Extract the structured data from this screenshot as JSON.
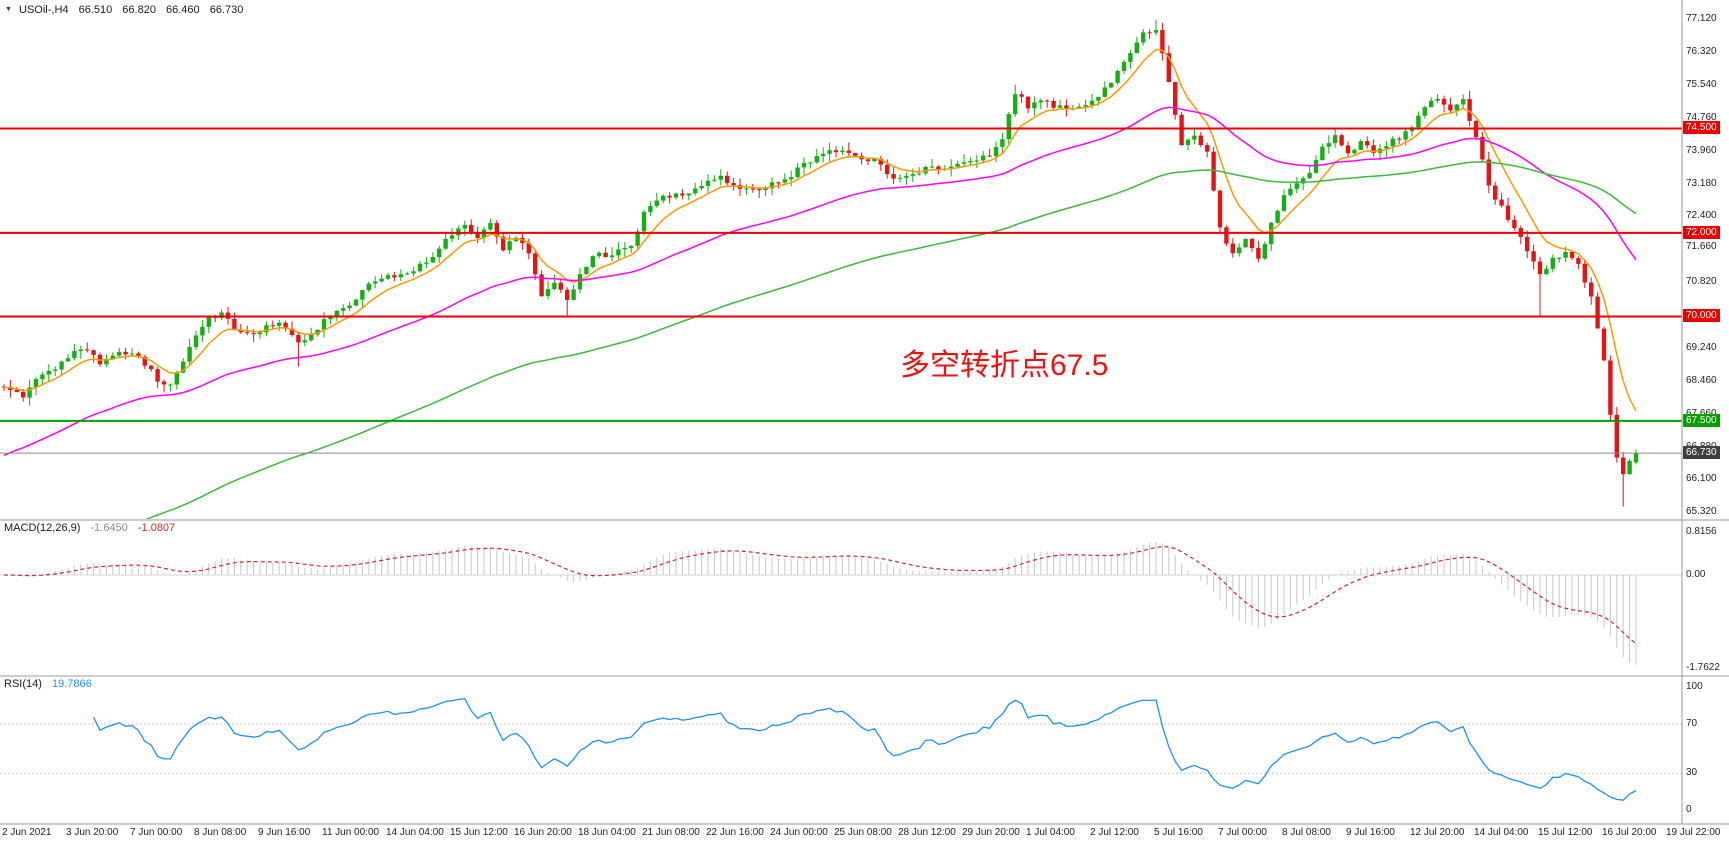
{
  "title": {
    "expander": "▼",
    "symbol_period": "USOil-,H4",
    "open": "66.510",
    "high": "66.820",
    "low": "66.460",
    "close": "66.730"
  },
  "indicators": {
    "macd": {
      "label": "MACD(12,26,9)",
      "main_value": "-1.6450",
      "signal_value": "-1.0807",
      "main_color": "#8a8a8a",
      "signal_color": "#d02828"
    },
    "rsi": {
      "label": "RSI(14)",
      "value": "19.7866",
      "value_color": "#1e90ff"
    }
  },
  "colors": {
    "background": "#ffffff",
    "panel_border": "#9a9a9a",
    "axis_text": "#1f1f1f"
  },
  "chart_data": {
    "type": "candlestick",
    "symbol": "USOil-",
    "timeframe": "H4",
    "current_bar": {
      "open": 66.51,
      "high": 66.82,
      "low": 66.46,
      "close": 66.73
    },
    "annotation": {
      "text": "多空转折点67.5",
      "color": "#ee1111"
    },
    "y_axis_ticks": [
      "77.120",
      "76.320",
      "75.540",
      "74.760",
      "73.960",
      "73.180",
      "72.400",
      "71.660",
      "70.820",
      "69.240",
      "68.460",
      "67.660",
      "66.880",
      "66.100",
      "65.320"
    ],
    "x_axis_labels": [
      "2 Jun 2021",
      "3 Jun 20:00",
      "7 Jun 00:00",
      "8 Jun 08:00",
      "9 Jun 16:00",
      "11 Jun 00:00",
      "14 Jun 04:00",
      "15 Jun 12:00",
      "16 Jun 20:00",
      "18 Jun 04:00",
      "21 Jun 08:00",
      "22 Jun 16:00",
      "24 Jun 00:00",
      "25 Jun 08:00",
      "28 Jun 12:00",
      "29 Jun 20:00",
      "1 Jul 04:00",
      "2 Jul 12:00",
      "5 Jul 16:00",
      "7 Jul 00:00",
      "8 Jul 08:00",
      "9 Jul 16:00",
      "12 Jul 20:00",
      "14 Jul 04:00",
      "15 Jul 12:00",
      "16 Jul 20:00",
      "19 Jul 22:00"
    ],
    "levels": [
      {
        "value": 74.5,
        "label": "74.500",
        "color": "#ee0000",
        "badge": "#ee0000",
        "width": 2
      },
      {
        "value": 72.0,
        "label": "72.000",
        "color": "#ee0000",
        "badge": "#ee0000",
        "width": 2
      },
      {
        "value": 70.0,
        "label": "70.000",
        "color": "#ee0000",
        "badge": "#ee0000",
        "width": 2
      },
      {
        "value": 67.5,
        "label": "67.500",
        "color": "#00a000",
        "badge": "#00a000",
        "width": 2
      },
      {
        "value": 66.73,
        "label": "66.730",
        "color": "#888888",
        "badge": "#404040",
        "width": 1
      }
    ],
    "candles": {
      "count": 256,
      "spacing": 6.4,
      "noise": 0.14,
      "wick": 0.2,
      "seed": 987654,
      "up_color": "#12b012",
      "down_color": "#e41414",
      "close_waypoints": [
        [
          0,
          68.35
        ],
        [
          3,
          68.1
        ],
        [
          6,
          68.6
        ],
        [
          9,
          68.9
        ],
        [
          12,
          69.25
        ],
        [
          15,
          68.9
        ],
        [
          18,
          69.2
        ],
        [
          21,
          69.05
        ],
        [
          24,
          68.5
        ],
        [
          26,
          68.35
        ],
        [
          29,
          69.3
        ],
        [
          32,
          69.95
        ],
        [
          34,
          70.05
        ],
        [
          37,
          69.6
        ],
        [
          40,
          69.65
        ],
        [
          43,
          69.9
        ],
        [
          46,
          69.35
        ],
        [
          48,
          69.6
        ],
        [
          51,
          70.05
        ],
        [
          54,
          70.25
        ],
        [
          57,
          70.75
        ],
        [
          60,
          70.95
        ],
        [
          63,
          71.05
        ],
        [
          66,
          71.3
        ],
        [
          69,
          71.8
        ],
        [
          72,
          72.25
        ],
        [
          74,
          71.85
        ],
        [
          76,
          72.2
        ],
        [
          78,
          71.65
        ],
        [
          80,
          71.95
        ],
        [
          82,
          71.5
        ],
        [
          84,
          70.55
        ],
        [
          86,
          70.85
        ],
        [
          88,
          70.35
        ],
        [
          90,
          71.0
        ],
        [
          92,
          71.45
        ],
        [
          95,
          71.5
        ],
        [
          98,
          71.7
        ],
        [
          100,
          72.5
        ],
        [
          103,
          72.85
        ],
        [
          106,
          72.95
        ],
        [
          109,
          73.1
        ],
        [
          112,
          73.35
        ],
        [
          115,
          73.0
        ],
        [
          118,
          73.05
        ],
        [
          121,
          73.2
        ],
        [
          124,
          73.5
        ],
        [
          127,
          73.85
        ],
        [
          130,
          74.0
        ],
        [
          133,
          73.85
        ],
        [
          136,
          73.7
        ],
        [
          139,
          73.3
        ],
        [
          142,
          73.45
        ],
        [
          145,
          73.55
        ],
        [
          148,
          73.6
        ],
        [
          151,
          73.7
        ],
        [
          154,
          73.9
        ],
        [
          156,
          74.3
        ],
        [
          158,
          75.35
        ],
        [
          160,
          75.05
        ],
        [
          162,
          75.2
        ],
        [
          164,
          75.05
        ],
        [
          166,
          74.95
        ],
        [
          168,
          75.0
        ],
        [
          170,
          75.2
        ],
        [
          172,
          75.45
        ],
        [
          174,
          75.85
        ],
        [
          176,
          76.35
        ],
        [
          178,
          76.75
        ],
        [
          180,
          76.9
        ],
        [
          182,
          75.6
        ],
        [
          184,
          74.05
        ],
        [
          186,
          74.35
        ],
        [
          188,
          73.9
        ],
        [
          190,
          72.1
        ],
        [
          192,
          71.45
        ],
        [
          194,
          71.8
        ],
        [
          196,
          71.35
        ],
        [
          198,
          72.2
        ],
        [
          200,
          72.85
        ],
        [
          202,
          73.25
        ],
        [
          204,
          73.5
        ],
        [
          206,
          74.0
        ],
        [
          208,
          74.35
        ],
        [
          210,
          73.85
        ],
        [
          212,
          74.15
        ],
        [
          214,
          73.95
        ],
        [
          216,
          74.1
        ],
        [
          218,
          74.3
        ],
        [
          220,
          74.55
        ],
        [
          222,
          75.0
        ],
        [
          224,
          75.25
        ],
        [
          226,
          74.9
        ],
        [
          228,
          75.15
        ],
        [
          230,
          74.35
        ],
        [
          232,
          73.1
        ],
        [
          234,
          72.6
        ],
        [
          236,
          72.15
        ],
        [
          238,
          71.6
        ],
        [
          240,
          71.05
        ],
        [
          242,
          71.35
        ],
        [
          244,
          71.5
        ],
        [
          246,
          71.2
        ],
        [
          248,
          70.45
        ],
        [
          250,
          68.9
        ],
        [
          251,
          67.6
        ],
        [
          252,
          66.6
        ],
        [
          253,
          66.25
        ],
        [
          254,
          66.55
        ],
        [
          255,
          66.73
        ]
      ],
      "extremes": [
        {
          "bar": 46,
          "low": 68.8
        },
        {
          "bar": 88,
          "low": 70.0
        },
        {
          "bar": 158,
          "high": 75.55
        },
        {
          "bar": 180,
          "high": 77.1
        },
        {
          "bar": 240,
          "low": 70.0
        },
        {
          "bar": 253,
          "low": 65.45
        }
      ]
    },
    "moving_averages": [
      {
        "name": "ema-fast",
        "period": 8,
        "color": "#ff9800"
      },
      {
        "name": "ema-mid",
        "period": 45,
        "init": 66.6,
        "color": "#ff00ff"
      },
      {
        "name": "ema-slow",
        "period": 110,
        "init": 63.2,
        "color": "#3cb83c"
      }
    ],
    "macd": {
      "fast": 12,
      "slow": 26,
      "signal": 9,
      "main_value": -1.645,
      "signal_value": -1.0807,
      "axis_ticks": [
        "0.8156",
        "0.00",
        "-1.7622"
      ],
      "histogram_color": "#c8c8c8",
      "signal_color": "#d02828",
      "zero_line_color": "#d4d4d4"
    },
    "rsi": {
      "period": 14,
      "value": 19.7866,
      "levels": [
        70,
        30
      ],
      "axis_ticks": [
        "100",
        "70",
        "30",
        "0"
      ],
      "line_color": "#1e90ff",
      "level_line_color": "#c8c8c8"
    }
  }
}
